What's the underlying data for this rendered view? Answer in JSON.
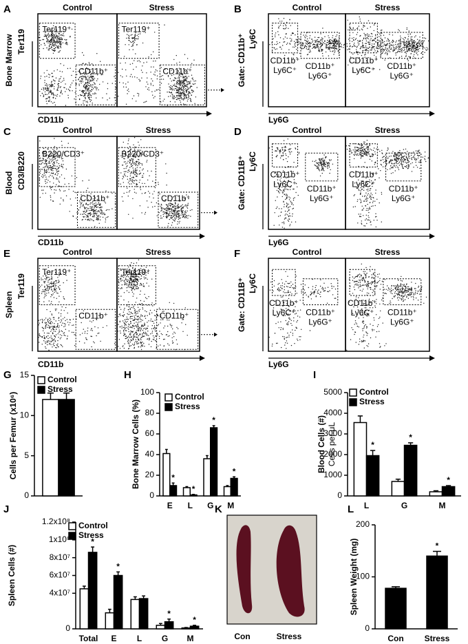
{
  "flow_panels": [
    {
      "panel_label": "A",
      "row_label": "Bone Marrow",
      "y_label": "Ter119",
      "x_label": "CD11b",
      "columns": [
        "Control",
        "Stress"
      ],
      "gates": [
        [
          "Ter119⁺"
        ],
        [
          "CD11b⁺"
        ]
      ]
    },
    {
      "panel_label": "B",
      "gate_label": "Gate: CD11b⁺",
      "y_label": "Ly6C",
      "x_label": "Ly6G",
      "columns": [
        "Control",
        "Stress"
      ],
      "gates": [
        [
          "CD11b⁺",
          "Ly6C⁺"
        ],
        [
          "CD11b⁺",
          "Ly6G⁺"
        ]
      ]
    },
    {
      "panel_label": "C",
      "row_label": "Blood",
      "y_label": "CD3/B220",
      "x_label": "CD11b",
      "columns": [
        "Control",
        "Stress"
      ],
      "gates": [
        [
          "B220/CD3⁺"
        ],
        [
          "CD11b⁺"
        ]
      ]
    },
    {
      "panel_label": "D",
      "gate_label": "Gate: CD11B⁺",
      "y_label": "Ly6C",
      "x_label": "Ly6G",
      "columns": [
        "Control",
        "Stress"
      ],
      "gates": [
        [
          "CD11b⁺",
          "Ly6C⁺"
        ],
        [
          "CD11b⁺",
          "Ly6G⁺"
        ]
      ]
    },
    {
      "panel_label": "E",
      "row_label": "Spleen",
      "y_label": "Ter119",
      "x_label": "CD11b",
      "columns": [
        "Control",
        "Stress"
      ],
      "gates": [
        [
          "Ter119⁺"
        ],
        [
          "CD11b⁺"
        ]
      ]
    },
    {
      "panel_label": "F",
      "gate_label": "Gate: CD11B⁺",
      "y_label": "Ly6C",
      "x_label": "Ly6G",
      "columns": [
        "Control",
        "Stress"
      ],
      "gates": [
        [
          "CD11b⁺",
          "Ly6C⁺"
        ],
        [
          "CD11b⁺",
          "Ly6G⁺"
        ]
      ]
    }
  ],
  "chart_data": [
    {
      "type": "bar",
      "panel_label": "G",
      "y_label": "Cells per Femur (x10⁶)",
      "categories": [
        null
      ],
      "series": [
        {
          "name": "Control",
          "color": "#ffffff",
          "values": [
            12
          ],
          "errors": [
            0.8
          ]
        },
        {
          "name": "Stress",
          "color": "#000000",
          "values": [
            12
          ],
          "errors": [
            0.8
          ]
        }
      ],
      "ylim": [
        0,
        15
      ],
      "yticks": [
        0,
        5,
        10,
        15
      ],
      "legend": true
    },
    {
      "type": "bar",
      "panel_label": "H",
      "y_label": "Bone Marrow Cells (%)",
      "categories": [
        "E",
        "L",
        "G",
        "M"
      ],
      "series": [
        {
          "name": "Control",
          "color": "#ffffff",
          "values": [
            41,
            8,
            36,
            9
          ],
          "errors": [
            4,
            1,
            3,
            1
          ]
        },
        {
          "name": "Stress",
          "color": "#000000",
          "values": [
            10,
            1,
            66,
            17
          ],
          "errors": [
            2.5,
            0.5,
            2,
            1.5
          ],
          "stars": [
            "*",
            "*",
            "*",
            "*"
          ]
        }
      ],
      "ylim": [
        0,
        100
      ],
      "yticks": [
        0,
        20,
        40,
        60,
        80,
        100
      ],
      "legend": true
    },
    {
      "type": "bar",
      "panel_label": "I",
      "y_label": "Blood Cells (#)",
      "y_sublabel": "Cells per μL",
      "categories": [
        "L",
        "G",
        "M"
      ],
      "series": [
        {
          "name": "Control",
          "color": "#ffffff",
          "values": [
            3550,
            700,
            200
          ],
          "errors": [
            320,
            110,
            50
          ]
        },
        {
          "name": "Stress",
          "color": "#000000",
          "values": [
            1950,
            2450,
            450
          ],
          "errors": [
            250,
            120,
            50
          ],
          "stars": [
            "*",
            "*",
            "*"
          ]
        }
      ],
      "ylim": [
        0,
        5000
      ],
      "yticks": [
        0,
        1000,
        2000,
        3000,
        4000,
        5000
      ],
      "legend": true
    },
    {
      "type": "bar",
      "panel_label": "J",
      "y_label": "Spleen Cells (#)",
      "categories": [
        "Total",
        "E",
        "L",
        "G",
        "M"
      ],
      "series": [
        {
          "name": "Control",
          "color": "#ffffff",
          "values": [
            45000000,
            18000000,
            33000000,
            4000000,
            1000000
          ],
          "errors": [
            3000000,
            4000000,
            3000000,
            2000000,
            500000
          ]
        },
        {
          "name": "Stress",
          "color": "#000000",
          "values": [
            86000000,
            60000000,
            34000000,
            8000000,
            3000000
          ],
          "errors": [
            6000000,
            4000000,
            3000000,
            3000000,
            1000000
          ],
          "stars": [
            "*",
            "*",
            null,
            "*",
            "*"
          ]
        }
      ],
      "ylim": [
        0,
        120000000
      ],
      "yticks": [
        0,
        {
          "value": 40000000,
          "label": "4x10⁷"
        },
        {
          "value": 60000000,
          "label": "6x10⁷"
        },
        {
          "value": 80000000,
          "label": "8x10⁷"
        },
        {
          "value": 100000000,
          "label": "1x10⁸"
        },
        {
          "value": 120000000,
          "label": "1.2x10⁸"
        }
      ],
      "legend": true
    },
    {
      "type": "bar",
      "panel_label": "L",
      "y_label": "Spleen Weight  (mg)",
      "categories": [
        "Con",
        "Stress"
      ],
      "values": [
        78,
        140
      ],
      "errors": [
        3,
        9
      ],
      "stars": [
        null,
        "*"
      ],
      "color": "#000000",
      "ylim": [
        0,
        200
      ],
      "yticks": [
        0,
        100,
        200
      ],
      "legend": false
    }
  ],
  "photo": {
    "panel_label": "K",
    "labels": [
      "Con",
      "Stress"
    ]
  }
}
